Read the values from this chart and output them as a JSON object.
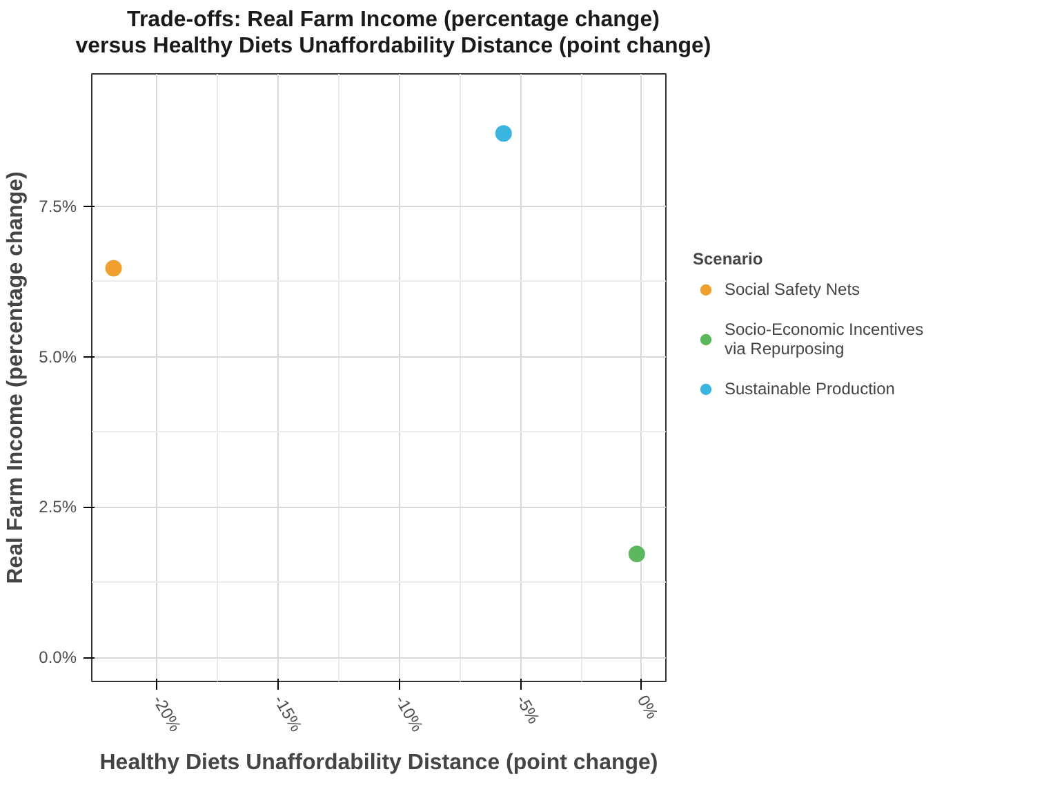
{
  "chart_data": {
    "type": "scatter",
    "title": "Trade-offs: Real Farm Income (percentage change)\nversus Healthy Diets Unaffordability Distance (point change)",
    "xlabel": "Healthy Diets Unaffordability Distance (point change)",
    "ylabel": "Real Farm Income (percentage change)",
    "legend_title": "Scenario",
    "series": [
      {
        "name": "Social Safety Nets",
        "color": "#f0a030",
        "x": [
          -21.8
        ],
        "values": [
          6.47
        ]
      },
      {
        "name": "Socio-Economic Incentives\nvia Repurposing",
        "color": "#5cb85c",
        "x": [
          -0.2
        ],
        "values": [
          1.72
        ]
      },
      {
        "name": "Sustainable Production",
        "color": "#3bb5e0",
        "x": [
          -5.7
        ],
        "values": [
          8.71
        ]
      }
    ],
    "xlim": [
      -22.7,
      1.0
    ],
    "ylim": [
      -0.4,
      9.7
    ],
    "xticks": [
      {
        "value": -20,
        "label": "-20%"
      },
      {
        "value": -15,
        "label": "-15%"
      },
      {
        "value": -10,
        "label": "-10%"
      },
      {
        "value": -5,
        "label": "-5%"
      },
      {
        "value": 0,
        "label": "0%"
      }
    ],
    "yticks": [
      {
        "value": 0,
        "label": "0.0%"
      },
      {
        "value": 2.5,
        "label": "2.5%"
      },
      {
        "value": 5,
        "label": "5.0%"
      },
      {
        "value": 7.5,
        "label": "7.5%"
      }
    ],
    "grid": true,
    "legend": "right",
    "marker": "circle"
  }
}
